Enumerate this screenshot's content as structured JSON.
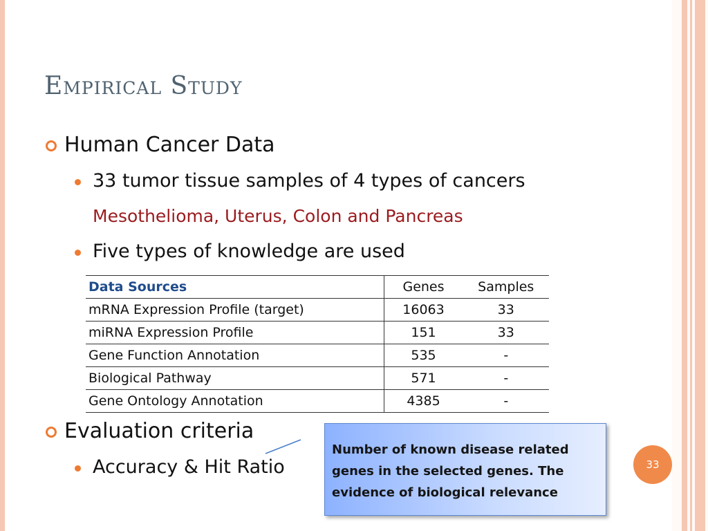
{
  "title": "Empirical Study",
  "bullets": [
    {
      "text": "Human Cancer Data",
      "children": [
        {
          "text": "33 tumor tissue samples of 4 types of cancers",
          "note": "Mesothelioma, Uterus, Colon and Pancreas"
        },
        {
          "text": "Five types of knowledge are used"
        }
      ]
    },
    {
      "text": "Evaluation criteria",
      "children": [
        {
          "text": "Accuracy & Hit Ratio"
        }
      ]
    }
  ],
  "table": {
    "headers": [
      "Data Sources",
      "Genes",
      "Samples"
    ],
    "rows": [
      [
        "mRNA Expression Profile (target)",
        "16063",
        "33"
      ],
      [
        "miRNA Expression Profile",
        "151",
        "33"
      ],
      [
        "Gene Function Annotation",
        "535",
        "-"
      ],
      [
        "Biological Pathway",
        "571",
        "-"
      ],
      [
        "Gene Ontology Annotation",
        "4385",
        "-"
      ]
    ]
  },
  "callout": {
    "lines": [
      "Number of known disease related",
      "genes in the selected genes. The",
      "evidence of biological relevance"
    ]
  },
  "page_number": "33",
  "colors": {
    "title": "#50626f",
    "accent": "#ee7b32",
    "note": "#9a1b1f",
    "table_header": "#1f4c8c",
    "page_badge": "#f08a4b"
  }
}
